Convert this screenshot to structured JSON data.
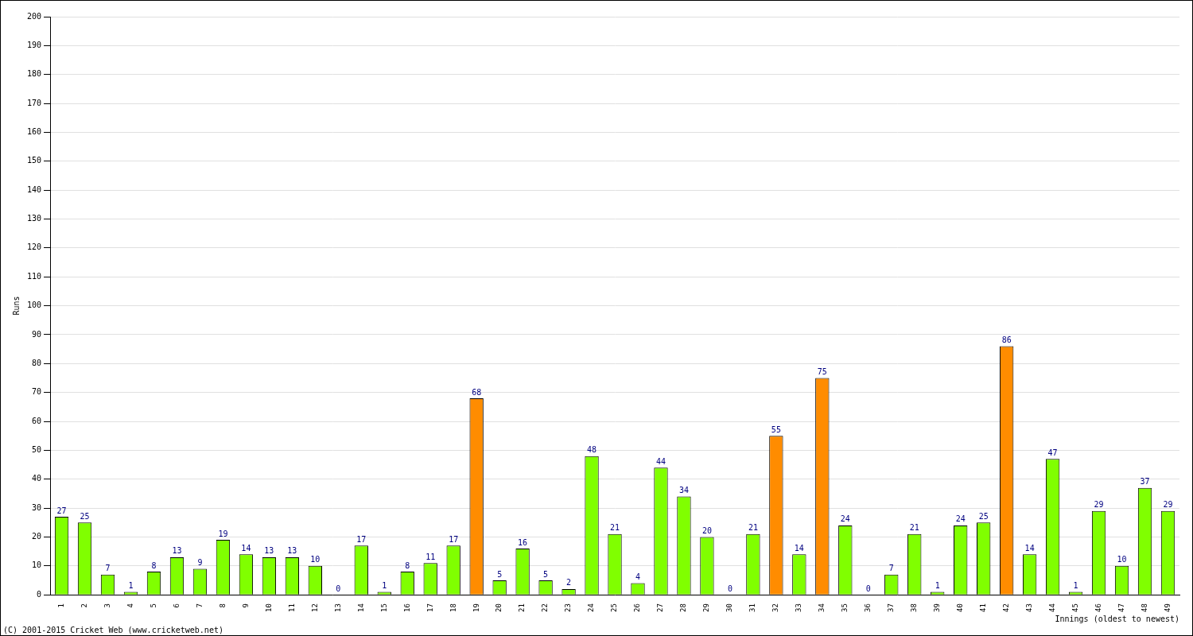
{
  "chart_data": {
    "type": "bar",
    "categories": [
      "1",
      "2",
      "3",
      "4",
      "5",
      "6",
      "7",
      "8",
      "9",
      "10",
      "11",
      "12",
      "13",
      "14",
      "15",
      "16",
      "17",
      "18",
      "19",
      "20",
      "21",
      "22",
      "23",
      "24",
      "25",
      "26",
      "27",
      "28",
      "29",
      "30",
      "31",
      "32",
      "33",
      "34",
      "35",
      "36",
      "37",
      "38",
      "39",
      "40",
      "41",
      "42",
      "43",
      "44",
      "45",
      "46",
      "47",
      "48",
      "49"
    ],
    "values": [
      27,
      25,
      7,
      1,
      8,
      13,
      9,
      19,
      14,
      13,
      13,
      10,
      0,
      17,
      1,
      8,
      11,
      17,
      68,
      5,
      16,
      5,
      2,
      48,
      21,
      4,
      44,
      34,
      20,
      0,
      21,
      55,
      14,
      75,
      24,
      0,
      7,
      21,
      1,
      24,
      25,
      86,
      14,
      47,
      1,
      29,
      10,
      37,
      29
    ],
    "colors": [
      "#80ff00",
      "#80ff00",
      "#80ff00",
      "#80ff00",
      "#80ff00",
      "#80ff00",
      "#80ff00",
      "#80ff00",
      "#80ff00",
      "#80ff00",
      "#80ff00",
      "#80ff00",
      "#80ff00",
      "#80ff00",
      "#80ff00",
      "#80ff00",
      "#80ff00",
      "#80ff00",
      "#ff8c00",
      "#80ff00",
      "#80ff00",
      "#80ff00",
      "#80ff00",
      "#80ff00",
      "#80ff00",
      "#80ff00",
      "#80ff00",
      "#80ff00",
      "#80ff00",
      "#80ff00",
      "#80ff00",
      "#ff8c00",
      "#80ff00",
      "#ff8c00",
      "#80ff00",
      "#80ff00",
      "#80ff00",
      "#80ff00",
      "#80ff00",
      "#80ff00",
      "#80ff00",
      "#ff8c00",
      "#80ff00",
      "#80ff00",
      "#80ff00",
      "#80ff00",
      "#80ff00",
      "#80ff00",
      "#80ff00"
    ],
    "x_label": "Innings (oldest to newest)",
    "y_label": "Runs",
    "ylim": [
      0,
      200
    ],
    "yticks": [
      0,
      10,
      20,
      30,
      40,
      50,
      60,
      70,
      80,
      90,
      100,
      110,
      120,
      130,
      140,
      150,
      160,
      170,
      180,
      190,
      200
    ],
    "grid": true,
    "data_labels": true,
    "annotations": [
      "(C) 2001-2015 Cricket Web (www.cricketweb.net)"
    ]
  }
}
